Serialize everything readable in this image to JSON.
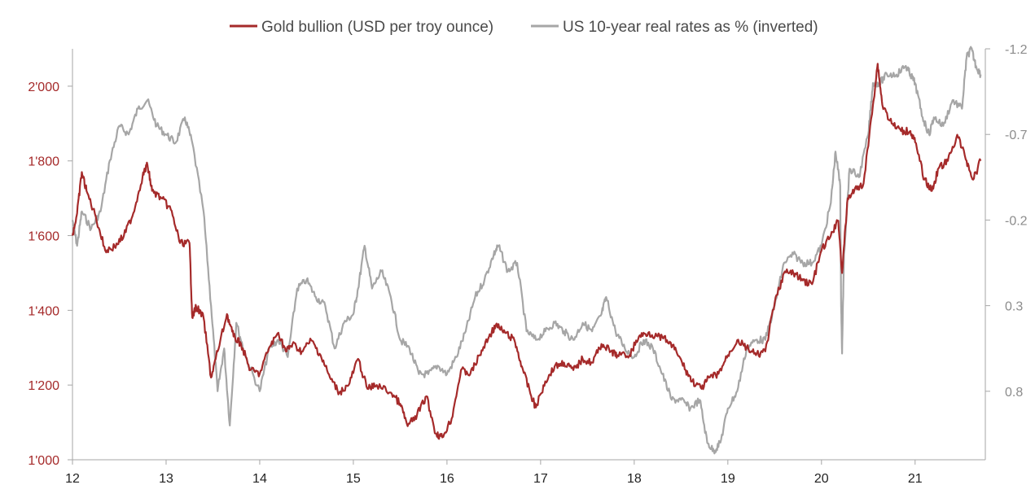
{
  "colors": {
    "gold": "#a52a2a",
    "rates": "#a6a6a6",
    "axis": "#a6a6a6",
    "background": "#ffffff"
  },
  "chart_data": {
    "type": "line",
    "title": "",
    "legend_position": "top-center",
    "grid": false,
    "x_ticks": [
      "12",
      "13",
      "14",
      "15",
      "16",
      "17",
      "18",
      "19",
      "20",
      "21"
    ],
    "xlim": [
      2012.0,
      2021.75
    ],
    "left_axis": {
      "label": "",
      "ticks": [
        "1'000",
        "1'200",
        "1'400",
        "1'600",
        "1'800",
        "2'000"
      ],
      "tick_values": [
        1000,
        1200,
        1400,
        1600,
        1800,
        2000
      ],
      "ylim": [
        1000,
        2100
      ]
    },
    "right_axis": {
      "label": "",
      "inverted": true,
      "ticks": [
        "-1.2",
        "-0.7",
        "-0.2",
        "0.3",
        "0.8"
      ],
      "tick_values": [
        -1.2,
        -0.7,
        -0.2,
        0.3,
        0.8
      ],
      "ylim": [
        -1.2,
        1.2
      ]
    },
    "series": [
      {
        "name": "Gold bullion (USD per troy ounce)",
        "axis": "left",
        "color": "#a52a2a",
        "points": [
          [
            2012.0,
            1600
          ],
          [
            2012.05,
            1660
          ],
          [
            2012.1,
            1770
          ],
          [
            2012.15,
            1720
          ],
          [
            2012.25,
            1650
          ],
          [
            2012.35,
            1560
          ],
          [
            2012.45,
            1570
          ],
          [
            2012.55,
            1600
          ],
          [
            2012.65,
            1660
          ],
          [
            2012.75,
            1760
          ],
          [
            2012.8,
            1790
          ],
          [
            2012.85,
            1720
          ],
          [
            2012.95,
            1700
          ],
          [
            2013.05,
            1670
          ],
          [
            2013.15,
            1580
          ],
          [
            2013.25,
            1580
          ],
          [
            2013.28,
            1380
          ],
          [
            2013.32,
            1410
          ],
          [
            2013.4,
            1380
          ],
          [
            2013.48,
            1220
          ],
          [
            2013.55,
            1290
          ],
          [
            2013.65,
            1390
          ],
          [
            2013.72,
            1330
          ],
          [
            2013.8,
            1310
          ],
          [
            2013.9,
            1240
          ],
          [
            2014.0,
            1230
          ],
          [
            2014.1,
            1300
          ],
          [
            2014.2,
            1340
          ],
          [
            2014.28,
            1290
          ],
          [
            2014.35,
            1310
          ],
          [
            2014.45,
            1290
          ],
          [
            2014.55,
            1320
          ],
          [
            2014.65,
            1280
          ],
          [
            2014.75,
            1220
          ],
          [
            2014.85,
            1180
          ],
          [
            2014.95,
            1200
          ],
          [
            2015.05,
            1270
          ],
          [
            2015.15,
            1190
          ],
          [
            2015.25,
            1200
          ],
          [
            2015.4,
            1180
          ],
          [
            2015.5,
            1150
          ],
          [
            2015.58,
            1090
          ],
          [
            2015.68,
            1120
          ],
          [
            2015.78,
            1170
          ],
          [
            2015.88,
            1070
          ],
          [
            2015.95,
            1060
          ],
          [
            2016.05,
            1110
          ],
          [
            2016.15,
            1240
          ],
          [
            2016.25,
            1230
          ],
          [
            2016.35,
            1280
          ],
          [
            2016.45,
            1330
          ],
          [
            2016.52,
            1360
          ],
          [
            2016.62,
            1340
          ],
          [
            2016.72,
            1320
          ],
          [
            2016.8,
            1250
          ],
          [
            2016.9,
            1170
          ],
          [
            2016.95,
            1140
          ],
          [
            2017.05,
            1210
          ],
          [
            2017.15,
            1250
          ],
          [
            2017.25,
            1260
          ],
          [
            2017.35,
            1240
          ],
          [
            2017.45,
            1270
          ],
          [
            2017.55,
            1260
          ],
          [
            2017.65,
            1310
          ],
          [
            2017.75,
            1290
          ],
          [
            2017.82,
            1280
          ],
          [
            2017.95,
            1280
          ],
          [
            2018.05,
            1330
          ],
          [
            2018.15,
            1340
          ],
          [
            2018.25,
            1330
          ],
          [
            2018.35,
            1320
          ],
          [
            2018.45,
            1290
          ],
          [
            2018.55,
            1240
          ],
          [
            2018.62,
            1210
          ],
          [
            2018.72,
            1190
          ],
          [
            2018.8,
            1220
          ],
          [
            2018.9,
            1230
          ],
          [
            2019.0,
            1280
          ],
          [
            2019.1,
            1320
          ],
          [
            2019.2,
            1300
          ],
          [
            2019.3,
            1280
          ],
          [
            2019.4,
            1290
          ],
          [
            2019.5,
            1420
          ],
          [
            2019.6,
            1500
          ],
          [
            2019.7,
            1500
          ],
          [
            2019.8,
            1480
          ],
          [
            2019.9,
            1470
          ],
          [
            2020.0,
            1560
          ],
          [
            2020.1,
            1600
          ],
          [
            2020.18,
            1640
          ],
          [
            2020.22,
            1500
          ],
          [
            2020.28,
            1700
          ],
          [
            2020.35,
            1720
          ],
          [
            2020.45,
            1740
          ],
          [
            2020.55,
            1950
          ],
          [
            2020.6,
            2060
          ],
          [
            2020.65,
            1950
          ],
          [
            2020.75,
            1900
          ],
          [
            2020.85,
            1880
          ],
          [
            2020.95,
            1880
          ],
          [
            2021.0,
            1850
          ],
          [
            2021.1,
            1750
          ],
          [
            2021.18,
            1720
          ],
          [
            2021.25,
            1780
          ],
          [
            2021.35,
            1800
          ],
          [
            2021.45,
            1870
          ],
          [
            2021.55,
            1800
          ],
          [
            2021.62,
            1750
          ],
          [
            2021.7,
            1800
          ]
        ]
      },
      {
        "name": "US 10-year real rates as % (inverted)",
        "axis": "right",
        "color": "#a6a6a6",
        "points": [
          [
            2012.0,
            -0.2
          ],
          [
            2012.05,
            -0.05
          ],
          [
            2012.1,
            -0.25
          ],
          [
            2012.2,
            -0.15
          ],
          [
            2012.3,
            -0.25
          ],
          [
            2012.4,
            -0.55
          ],
          [
            2012.5,
            -0.75
          ],
          [
            2012.6,
            -0.7
          ],
          [
            2012.7,
            -0.85
          ],
          [
            2012.8,
            -0.9
          ],
          [
            2012.9,
            -0.75
          ],
          [
            2013.0,
            -0.7
          ],
          [
            2013.1,
            -0.65
          ],
          [
            2013.2,
            -0.8
          ],
          [
            2013.28,
            -0.65
          ],
          [
            2013.4,
            -0.25
          ],
          [
            2013.48,
            0.3
          ],
          [
            2013.55,
            0.8
          ],
          [
            2013.62,
            0.55
          ],
          [
            2013.68,
            1.0
          ],
          [
            2013.75,
            0.4
          ],
          [
            2013.85,
            0.6
          ],
          [
            2014.0,
            0.8
          ],
          [
            2014.1,
            0.55
          ],
          [
            2014.2,
            0.5
          ],
          [
            2014.3,
            0.6
          ],
          [
            2014.4,
            0.2
          ],
          [
            2014.5,
            0.15
          ],
          [
            2014.6,
            0.25
          ],
          [
            2014.7,
            0.3
          ],
          [
            2014.8,
            0.55
          ],
          [
            2014.9,
            0.4
          ],
          [
            2015.0,
            0.35
          ],
          [
            2015.05,
            0.2
          ],
          [
            2015.12,
            -0.05
          ],
          [
            2015.2,
            0.2
          ],
          [
            2015.3,
            0.1
          ],
          [
            2015.4,
            0.25
          ],
          [
            2015.5,
            0.5
          ],
          [
            2015.6,
            0.55
          ],
          [
            2015.7,
            0.7
          ],
          [
            2015.8,
            0.7
          ],
          [
            2015.9,
            0.65
          ],
          [
            2016.0,
            0.7
          ],
          [
            2016.1,
            0.6
          ],
          [
            2016.2,
            0.45
          ],
          [
            2016.3,
            0.25
          ],
          [
            2016.4,
            0.15
          ],
          [
            2016.5,
            0.0
          ],
          [
            2016.55,
            -0.05
          ],
          [
            2016.65,
            0.1
          ],
          [
            2016.75,
            0.05
          ],
          [
            2016.85,
            0.45
          ],
          [
            2016.95,
            0.5
          ],
          [
            2017.05,
            0.45
          ],
          [
            2017.15,
            0.4
          ],
          [
            2017.25,
            0.45
          ],
          [
            2017.35,
            0.5
          ],
          [
            2017.45,
            0.4
          ],
          [
            2017.55,
            0.45
          ],
          [
            2017.65,
            0.35
          ],
          [
            2017.7,
            0.25
          ],
          [
            2017.8,
            0.45
          ],
          [
            2017.9,
            0.55
          ],
          [
            2018.0,
            0.6
          ],
          [
            2018.1,
            0.5
          ],
          [
            2018.2,
            0.55
          ],
          [
            2018.3,
            0.7
          ],
          [
            2018.4,
            0.85
          ],
          [
            2018.5,
            0.85
          ],
          [
            2018.6,
            0.9
          ],
          [
            2018.7,
            0.85
          ],
          [
            2018.78,
            1.1
          ],
          [
            2018.85,
            1.15
          ],
          [
            2018.92,
            1.1
          ],
          [
            2019.0,
            0.9
          ],
          [
            2019.1,
            0.8
          ],
          [
            2019.2,
            0.55
          ],
          [
            2019.3,
            0.5
          ],
          [
            2019.4,
            0.5
          ],
          [
            2019.5,
            0.3
          ],
          [
            2019.6,
            0.05
          ],
          [
            2019.7,
            0.0
          ],
          [
            2019.8,
            0.05
          ],
          [
            2019.9,
            0.05
          ],
          [
            2020.0,
            -0.05
          ],
          [
            2020.1,
            -0.3
          ],
          [
            2020.15,
            -0.6
          ],
          [
            2020.2,
            -0.4
          ],
          [
            2020.21,
            0.3
          ],
          [
            2020.22,
            0.58
          ],
          [
            2020.24,
            0.0
          ],
          [
            2020.3,
            -0.5
          ],
          [
            2020.4,
            -0.45
          ],
          [
            2020.5,
            -0.7
          ],
          [
            2020.55,
            -1.0
          ],
          [
            2020.62,
            -1.0
          ],
          [
            2020.7,
            -1.05
          ],
          [
            2020.8,
            -1.05
          ],
          [
            2020.9,
            -1.1
          ],
          [
            2020.95,
            -1.05
          ],
          [
            2021.0,
            -1.0
          ],
          [
            2021.08,
            -0.8
          ],
          [
            2021.15,
            -0.7
          ],
          [
            2021.2,
            -0.8
          ],
          [
            2021.3,
            -0.75
          ],
          [
            2021.4,
            -0.9
          ],
          [
            2021.5,
            -0.85
          ],
          [
            2021.55,
            -1.15
          ],
          [
            2021.6,
            -1.2
          ],
          [
            2021.65,
            -1.1
          ],
          [
            2021.7,
            -1.05
          ]
        ]
      }
    ]
  }
}
